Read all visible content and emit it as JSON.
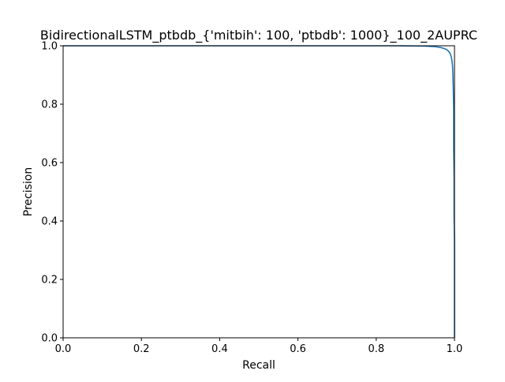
{
  "chart_data": {
    "type": "line",
    "title": "BidirectionalLSTM_ptbdb_{'mitbih': 100, 'ptbdb': 1000}_100_2AUPRC",
    "xlabel": "Recall",
    "ylabel": "Precision",
    "xlim": [
      0.0,
      1.0
    ],
    "ylim": [
      0.0,
      1.0
    ],
    "xticks": [
      0.0,
      0.2,
      0.4,
      0.6,
      0.8,
      1.0
    ],
    "yticks": [
      0.0,
      0.2,
      0.4,
      0.6,
      0.8,
      1.0
    ],
    "xtick_labels": [
      "0.0",
      "0.2",
      "0.4",
      "0.6",
      "0.8",
      "1.0"
    ],
    "ytick_labels": [
      "0.0",
      "0.2",
      "0.4",
      "0.6",
      "0.8",
      "1.0"
    ],
    "grid": false,
    "legend": false,
    "line_color": "#1f77b4",
    "series": [
      {
        "x": [
          0.0,
          0.86,
          0.92,
          0.95,
          0.965,
          0.975,
          0.982,
          0.987,
          0.99,
          0.992,
          0.994,
          0.995,
          0.996,
          0.997,
          0.998,
          0.998,
          0.999,
          0.999,
          1.0,
          1.0,
          1.0
        ],
        "y": [
          1.0,
          1.0,
          0.999,
          0.997,
          0.994,
          0.99,
          0.985,
          0.978,
          0.97,
          0.96,
          0.945,
          0.93,
          0.9,
          0.85,
          0.78,
          0.65,
          0.55,
          0.42,
          0.33,
          0.1,
          0.0
        ]
      }
    ]
  }
}
